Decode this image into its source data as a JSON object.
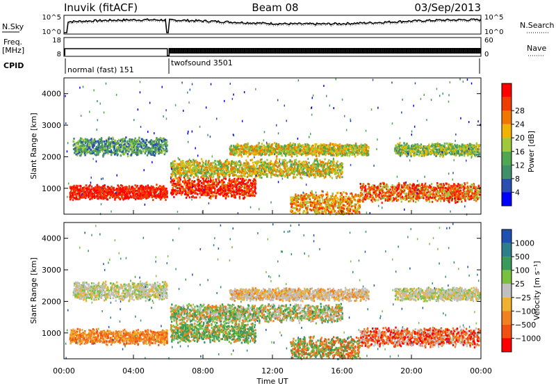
{
  "header": {
    "station": "Inuvik (fitACF)",
    "beam": "Beam 08",
    "date": "03/Sep/2013"
  },
  "left_labels": {
    "nsky": "N.Sky",
    "freq_line1": "Freq.",
    "freq_line2": "[MHz]",
    "cpid": "CPID"
  },
  "right_labels": {
    "nsearch": "N.Search",
    "nave": "Nave"
  },
  "cpid_segments": [
    {
      "label": "normal (fast) 151",
      "start": "00:00",
      "end": "06:00"
    },
    {
      "label": "twofsound 3501",
      "start": "06:00",
      "end": "24:00"
    }
  ],
  "colors": {
    "power": [
      "#0000ff",
      "#2b4fb0",
      "#3f8f6a",
      "#4fa84f",
      "#a0c83c",
      "#f0b400",
      "#f07800",
      "#f03c00",
      "#ff0000"
    ],
    "velocity": [
      "#2050b0",
      "#2f7f8a",
      "#3a9a5a",
      "#7ac040",
      "#c0c0c0",
      "#f0b030",
      "#f08020",
      "#f05010",
      "#ff0000"
    ],
    "ground_scatter": "#b0b0b0"
  },
  "chart_data": [
    {
      "type": "line",
      "name": "noise-search",
      "left_ticks": [
        "10^5",
        "10^0"
      ],
      "right_ticks": [
        "10^5",
        "10^0"
      ]
    },
    {
      "type": "line",
      "name": "frequency-nave",
      "left_ticks": [
        "18",
        "8"
      ],
      "right_ticks": [
        "60",
        "0"
      ]
    },
    {
      "type": "heatmap",
      "name": "power",
      "ylabel": "Slant Range [km]",
      "yticks": [
        1000,
        2000,
        3000,
        4000
      ],
      "colorbar_label": "Power [dB]",
      "colorbar_ticks": [
        "4",
        "8",
        "12",
        "16",
        "20",
        "24",
        "28"
      ]
    },
    {
      "type": "heatmap",
      "name": "velocity",
      "ylabel": "Slant Range [km]",
      "yticks": [
        1000,
        2000,
        3000,
        4000
      ],
      "colorbar_label": "Velocity [m s⁻¹]",
      "colorbar_ticks": [
        "1000",
        "500",
        "100",
        "25",
        "−25",
        "−100",
        "−500",
        "−1000"
      ]
    }
  ],
  "xaxis": {
    "ticks": [
      "00:00",
      "04:00",
      "08:00",
      "12:00",
      "16:00",
      "20:00",
      "00:00"
    ],
    "label": "Time UT"
  }
}
